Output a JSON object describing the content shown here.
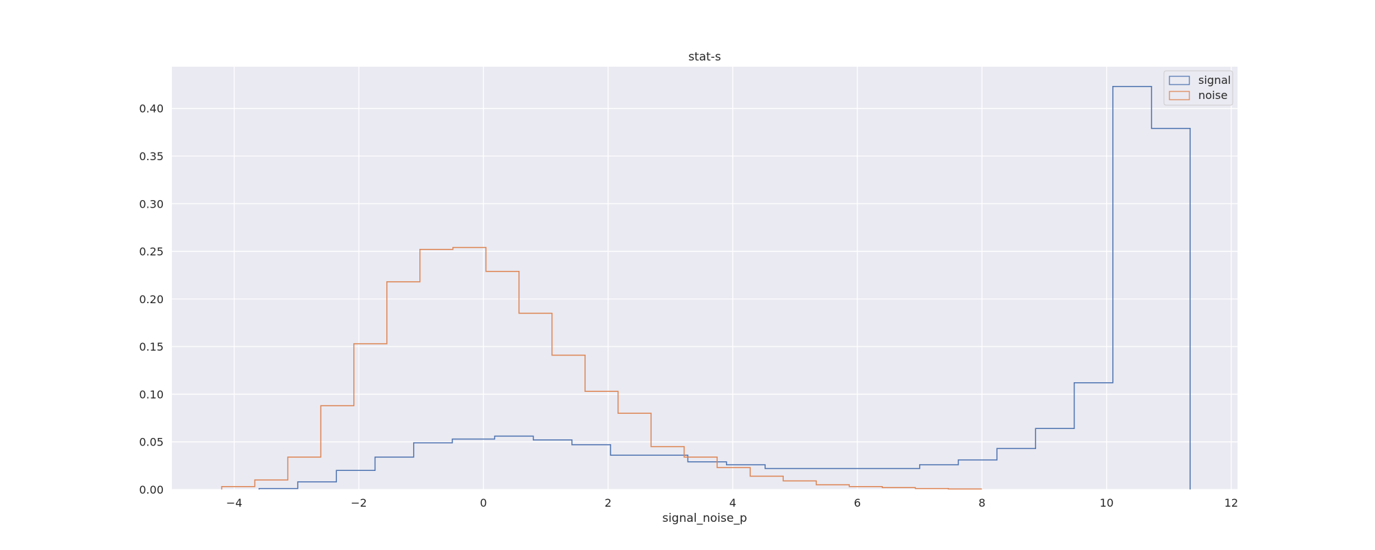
{
  "chart_data": {
    "type": "histogram-step",
    "title": "stat-s",
    "xlabel": "signal_noise_p",
    "ylabel": "",
    "xlim": [
      -5,
      12.1
    ],
    "ylim": [
      0,
      0.4438
    ],
    "xticks": [
      -4,
      -2,
      0,
      2,
      4,
      6,
      8,
      10,
      12
    ],
    "xtick_labels": [
      "−4",
      "−2",
      "0",
      "2",
      "4",
      "6",
      "8",
      "10",
      "12"
    ],
    "yticks": [
      0.0,
      0.05,
      0.1,
      0.15,
      0.2,
      0.25,
      0.3,
      0.35,
      0.4
    ],
    "ytick_labels": [
      "0.00",
      "0.05",
      "0.10",
      "0.15",
      "0.20",
      "0.25",
      "0.30",
      "0.35",
      "0.40"
    ],
    "grid": true,
    "legend_position": "top-right",
    "series": [
      {
        "name": "signal",
        "color": "#4c72b0",
        "edges": [
          -3.6,
          -2.98,
          -2.36,
          -1.74,
          -1.12,
          -0.5,
          0.18,
          0.8,
          1.42,
          2.04,
          3.28,
          3.9,
          4.52,
          5.14,
          5.76,
          6.38,
          7.0,
          7.62,
          8.24,
          8.86,
          9.48,
          10.1,
          10.72,
          11.34
        ],
        "values": [
          0.001,
          0.008,
          0.02,
          0.034,
          0.049,
          0.053,
          0.056,
          0.052,
          0.047,
          0.036,
          0.029,
          0.026,
          0.022,
          0.022,
          0.022,
          0.022,
          0.026,
          0.031,
          0.043,
          0.064,
          0.112,
          0.423,
          0.379
        ]
      },
      {
        "name": "noise",
        "color": "#dd8452",
        "edges": [
          -4.2,
          -3.67,
          -3.14,
          -2.61,
          -2.08,
          -1.55,
          -1.02,
          -0.49,
          0.04,
          0.57,
          1.1,
          1.63,
          2.16,
          2.69,
          3.22,
          3.75,
          4.28,
          4.81,
          5.34,
          5.87,
          6.4,
          6.93,
          7.46,
          7.99
        ],
        "values": [
          0.003,
          0.01,
          0.034,
          0.088,
          0.153,
          0.218,
          0.252,
          0.254,
          0.229,
          0.185,
          0.141,
          0.103,
          0.08,
          0.045,
          0.034,
          0.023,
          0.014,
          0.009,
          0.005,
          0.003,
          0.002,
          0.001,
          0.0005
        ]
      }
    ]
  }
}
